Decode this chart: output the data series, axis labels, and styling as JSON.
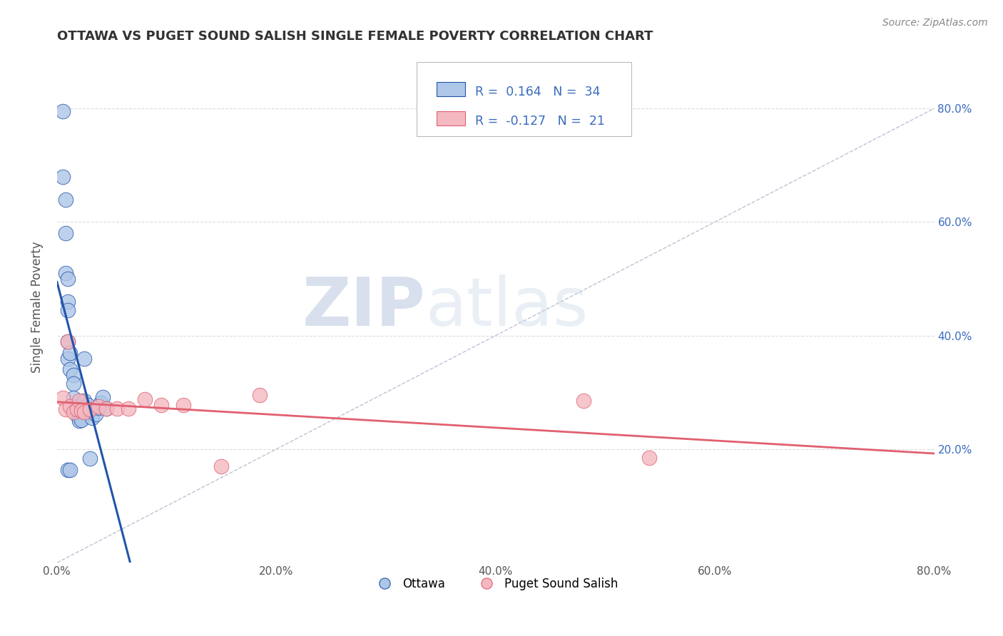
{
  "title": "OTTAWA VS PUGET SOUND SALISH SINGLE FEMALE POVERTY CORRELATION CHART",
  "source": "Source: ZipAtlas.com",
  "ylabel": "Single Female Poverty",
  "xlim": [
    0.0,
    0.8
  ],
  "ylim": [
    0.0,
    0.9
  ],
  "x_ticks": [
    0.0,
    0.2,
    0.4,
    0.6,
    0.8
  ],
  "x_tick_labels": [
    "0.0%",
    "20.0%",
    "40.0%",
    "60.0%",
    "80.0%"
  ],
  "y_tick_labels": [
    "20.0%",
    "40.0%",
    "60.0%",
    "80.0%"
  ],
  "y_ticks": [
    0.2,
    0.4,
    0.6,
    0.8
  ],
  "ottawa_color": "#aec6e8",
  "puget_color": "#f4b8c1",
  "trend_ottawa_color": "#2255aa",
  "trend_puget_color": "#e06070",
  "diag_color": "#b0b8cf",
  "legend_r_ottawa": "0.164",
  "legend_n_ottawa": "34",
  "legend_r_puget": "-0.127",
  "legend_n_puget": "21",
  "watermark_zip": "ZIP",
  "watermark_atlas": "atlas",
  "background_color": "#ffffff",
  "ottawa_points_x": [
    0.005,
    0.005,
    0.008,
    0.008,
    0.008,
    0.01,
    0.01,
    0.01,
    0.01,
    0.01,
    0.012,
    0.012,
    0.015,
    0.015,
    0.015,
    0.018,
    0.018,
    0.02,
    0.02,
    0.02,
    0.022,
    0.025,
    0.025,
    0.028,
    0.03,
    0.032,
    0.035,
    0.038,
    0.04,
    0.042,
    0.045,
    0.01,
    0.012,
    0.03
  ],
  "ottawa_points_y": [
    0.795,
    0.68,
    0.64,
    0.58,
    0.51,
    0.5,
    0.46,
    0.445,
    0.39,
    0.36,
    0.37,
    0.34,
    0.33,
    0.315,
    0.29,
    0.275,
    0.26,
    0.27,
    0.255,
    0.25,
    0.252,
    0.36,
    0.285,
    0.278,
    0.268,
    0.255,
    0.262,
    0.273,
    0.282,
    0.292,
    0.272,
    0.163,
    0.163,
    0.183
  ],
  "puget_points_x": [
    0.005,
    0.008,
    0.01,
    0.012,
    0.015,
    0.018,
    0.02,
    0.022,
    0.025,
    0.03,
    0.038,
    0.045,
    0.055,
    0.065,
    0.08,
    0.095,
    0.115,
    0.15,
    0.185,
    0.48,
    0.54
  ],
  "puget_points_y": [
    0.29,
    0.27,
    0.39,
    0.275,
    0.265,
    0.27,
    0.285,
    0.268,
    0.265,
    0.27,
    0.275,
    0.272,
    0.272,
    0.272,
    0.288,
    0.278,
    0.278,
    0.17,
    0.295,
    0.285,
    0.185
  ]
}
